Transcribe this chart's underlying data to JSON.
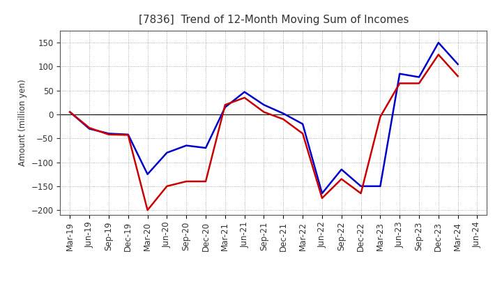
{
  "title": "[7836]  Trend of 12-Month Moving Sum of Incomes",
  "ylabel": "Amount (million yen)",
  "xlabels": [
    "Mar-19",
    "Jun-19",
    "Sep-19",
    "Dec-19",
    "Mar-20",
    "Jun-20",
    "Sep-20",
    "Dec-20",
    "Mar-21",
    "Jun-21",
    "Sep-21",
    "Dec-21",
    "Mar-22",
    "Jun-22",
    "Sep-22",
    "Dec-22",
    "Mar-23",
    "Jun-23",
    "Sep-23",
    "Dec-23",
    "Mar-24",
    "Jun-24"
  ],
  "ordinary_income": [
    5,
    -30,
    -40,
    -42,
    -125,
    -80,
    -65,
    -70,
    15,
    47,
    20,
    2,
    -20,
    -165,
    -115,
    -150,
    -150,
    85,
    78,
    150,
    105,
    null
  ],
  "net_income": [
    5,
    -28,
    -42,
    -43,
    -200,
    -150,
    -140,
    -140,
    20,
    35,
    5,
    -10,
    -40,
    -175,
    -135,
    -165,
    -5,
    65,
    65,
    125,
    80,
    null
  ],
  "ylim": [
    -210,
    175
  ],
  "yticks": [
    -200,
    -150,
    -100,
    -50,
    0,
    50,
    100,
    150
  ],
  "ordinary_color": "#0000cc",
  "net_color": "#cc0000",
  "line_width": 1.8,
  "bg_color": "#ffffff",
  "plot_bg_color": "#ffffff",
  "grid_color": "#999999",
  "title_fontsize": 11,
  "title_color": "#333333",
  "axis_fontsize": 8.5,
  "legend_fontsize": 9.5
}
